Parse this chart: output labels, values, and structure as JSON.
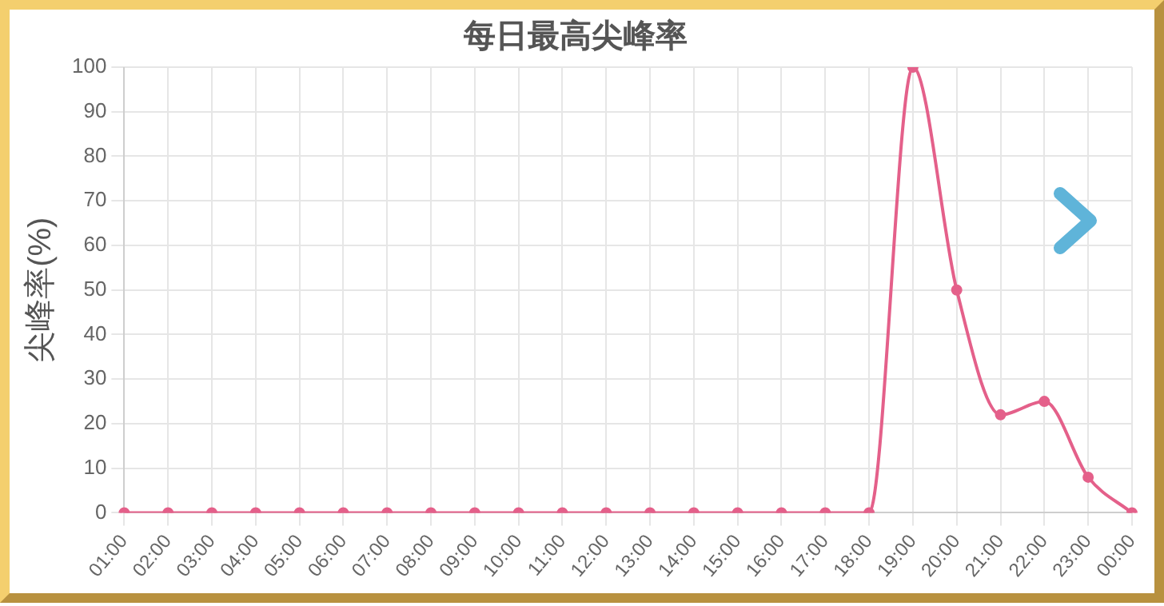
{
  "chart_data": {
    "type": "line",
    "title": "每日最高尖峰率",
    "ylabel": "尖峰率(%)",
    "categories": [
      "01:00",
      "02:00",
      "03:00",
      "04:00",
      "05:00",
      "06:00",
      "07:00",
      "08:00",
      "09:00",
      "10:00",
      "11:00",
      "12:00",
      "13:00",
      "14:00",
      "15:00",
      "16:00",
      "17:00",
      "18:00",
      "19:00",
      "20:00",
      "21:00",
      "22:00",
      "23:00",
      "00:00"
    ],
    "series": [
      {
        "color": "#e4608a",
        "values": [
          0,
          0,
          0,
          0,
          0,
          0,
          0,
          0,
          0,
          0,
          0,
          0,
          0,
          0,
          0,
          0,
          0,
          0,
          100,
          50,
          22,
          25,
          8,
          0
        ]
      }
    ],
    "ylim": [
      0,
      100
    ],
    "yticks": [
      0,
      10,
      20,
      30,
      40,
      50,
      60,
      70,
      80,
      90,
      100
    ],
    "grid": true,
    "legend": false,
    "marker": "circle",
    "line_style": "solid"
  }
}
